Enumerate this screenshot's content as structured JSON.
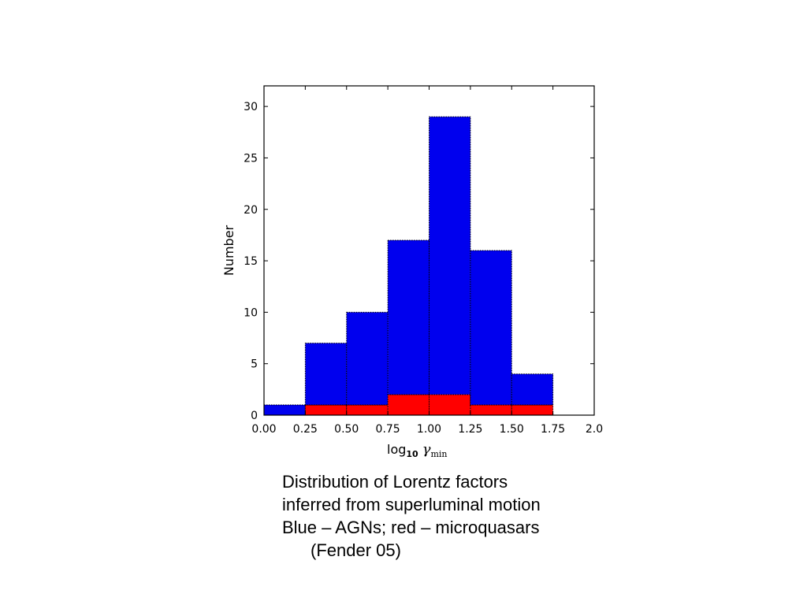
{
  "chart_data": {
    "type": "bar",
    "subtype": "stacked-histogram",
    "x_edges": [
      0.0,
      0.25,
      0.5,
      0.75,
      1.0,
      1.25,
      1.5,
      1.75,
      2.0
    ],
    "series": [
      {
        "values": [
          1,
          6,
          9,
          15,
          27,
          15,
          3,
          0
        ],
        "color": "#0000ee"
      },
      {
        "values": [
          0,
          1,
          1,
          2,
          2,
          1,
          1,
          0
        ],
        "color": "#ff0000"
      }
    ],
    "totals": [
      1,
      7,
      10,
      17,
      29,
      16,
      4,
      0
    ],
    "xlim": [
      0,
      2.0
    ],
    "ylim": [
      0,
      32
    ],
    "xticks": [
      "0.00",
      "0.25",
      "0.50",
      "0.75",
      "1.00",
      "1.25",
      "1.50",
      "1.75",
      "2.0"
    ],
    "yticks": [
      "0",
      "5",
      "10",
      "15",
      "20",
      "25",
      "30"
    ],
    "xlabel": {
      "base": "log",
      "sub": "10",
      "symbol": "γ",
      "symbol_sub": "min"
    },
    "ylabel": "Number",
    "title": "",
    "grid": false,
    "legend": "none"
  },
  "caption": {
    "lines": [
      "Distribution of Lorentz factors",
      "inferred from superluminal motion",
      "Blue – AGNs; red – microquasars"
    ],
    "citation": "(Fender 05)"
  }
}
